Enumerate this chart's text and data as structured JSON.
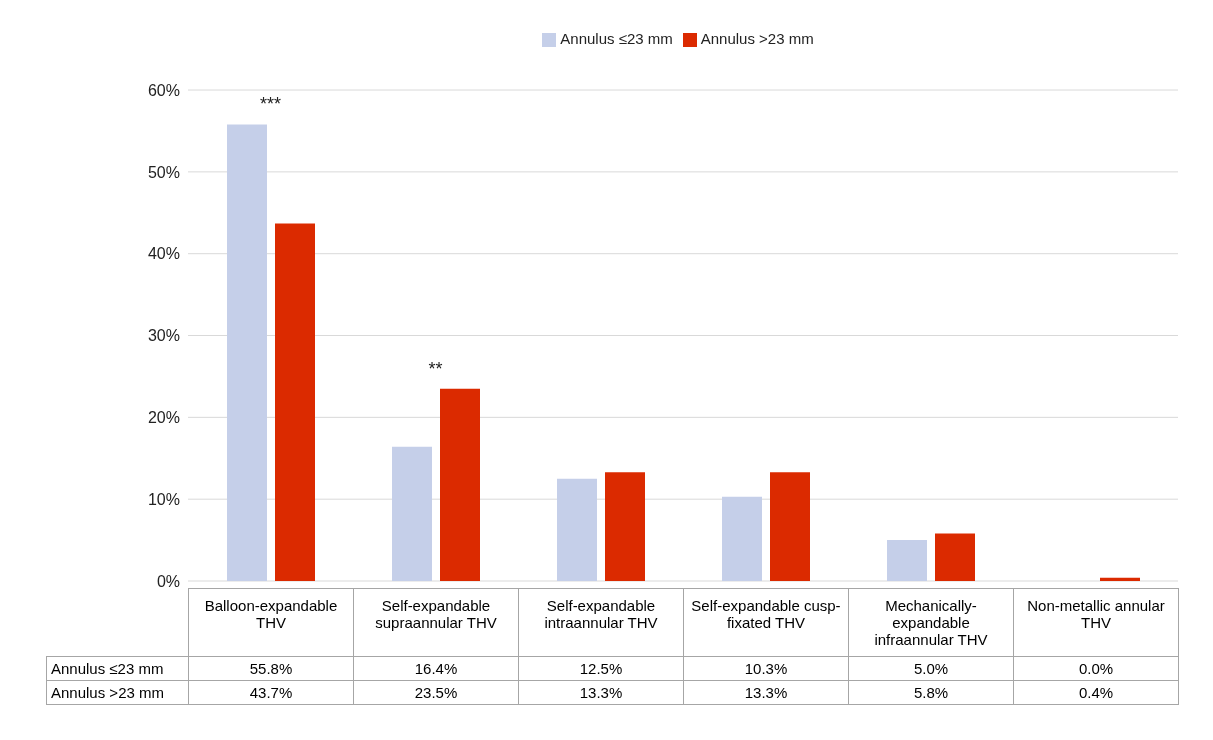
{
  "chart_data": {
    "type": "bar",
    "categories": [
      "Balloon-expandable THV",
      "Self-expandable supraannular THV",
      "Self-expandable intraannular THV",
      "Self-expandable cusp-fixated THV",
      "Mechanically-expandable infraannular THV",
      "Non-metallic annular THV"
    ],
    "series": [
      {
        "name": "Annulus ≤23 mm",
        "color": "#c5cfe9",
        "values": [
          55.8,
          16.4,
          12.5,
          10.3,
          5.0,
          0.0
        ],
        "value_labels": [
          "55.8%",
          "16.4%",
          "12.5%",
          "10.3%",
          "5.0%",
          "0.0%"
        ]
      },
      {
        "name": "Annulus >23 mm",
        "color": "#db2a00",
        "values": [
          43.7,
          23.5,
          13.3,
          13.3,
          5.8,
          0.4
        ],
        "value_labels": [
          "43.7%",
          "23.5%",
          "13.3%",
          "13.3%",
          "5.8%",
          "0.4%"
        ]
      }
    ],
    "ylim": [
      0,
      60
    ],
    "yticks": [
      {
        "value": 0,
        "label": "0%"
      },
      {
        "value": 10,
        "label": "10%"
      },
      {
        "value": 20,
        "label": "20%"
      },
      {
        "value": 30,
        "label": "30%"
      },
      {
        "value": 40,
        "label": "40%"
      },
      {
        "value": 50,
        "label": "50%"
      },
      {
        "value": 60,
        "label": "60%"
      }
    ],
    "grid": "y",
    "legend": "top",
    "annotations": [
      {
        "text": "***",
        "x": "Balloon-expandable THV",
        "y": 55.8
      },
      {
        "text": "**",
        "x": "Self-expandable supraannular THV",
        "y": 23.5
      }
    ]
  }
}
